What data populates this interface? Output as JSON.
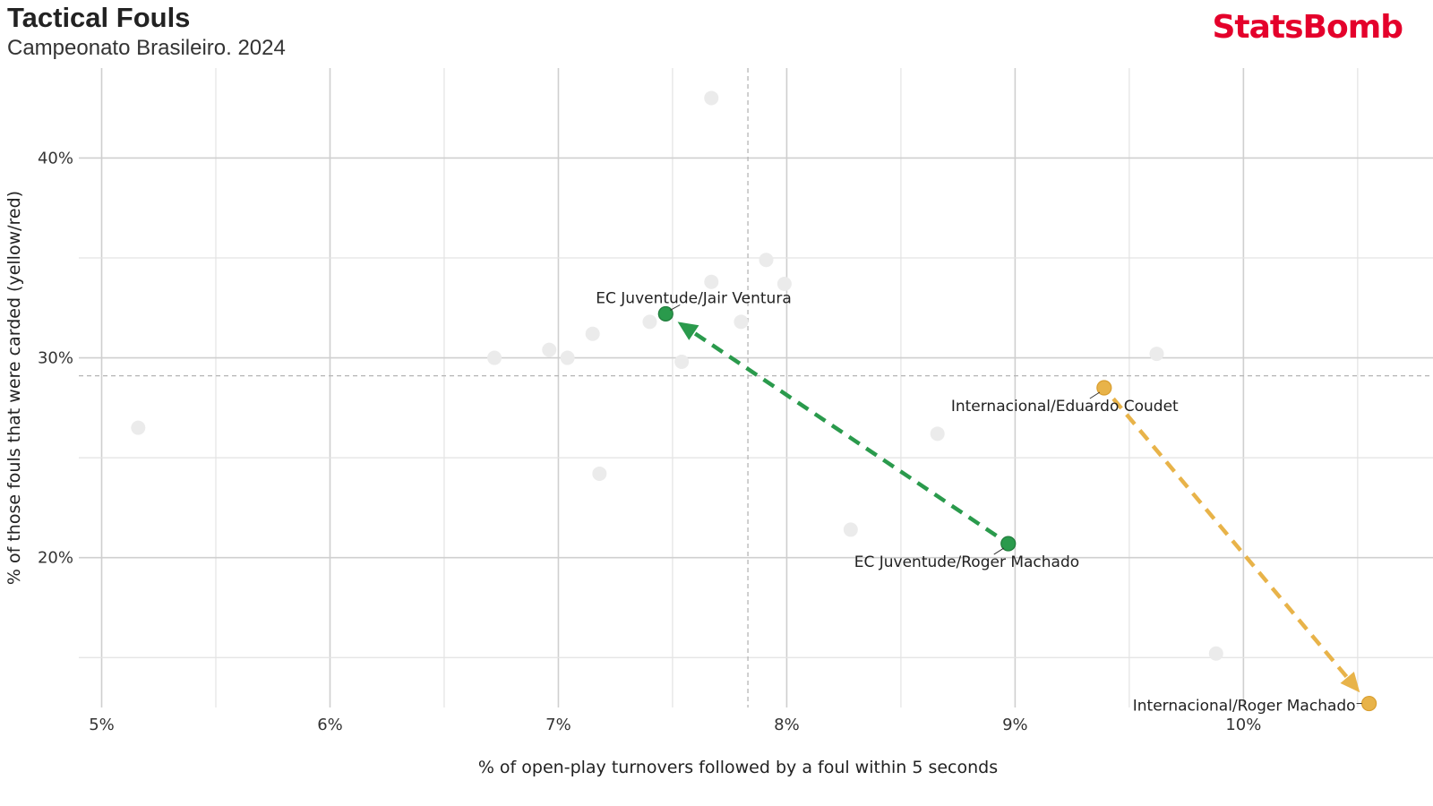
{
  "header": {
    "title": "Tactical Fouls",
    "subtitle": "Campeonato Brasileiro. 2024",
    "brand": "StatsBomb",
    "brand_color": "#e4002b"
  },
  "chart_data": {
    "type": "scatter",
    "xlabel": "% of open-play turnovers followed by a foul within 5 seconds",
    "ylabel": "% of those fouls that were carded (yellow/red)",
    "xlim": [
      4.9,
      10.83
    ],
    "ylim": [
      12.5,
      44.5
    ],
    "x_ticks": [
      5,
      6,
      7,
      8,
      9,
      10
    ],
    "x_tick_labels": [
      "5%",
      "6%",
      "7%",
      "8%",
      "9%",
      "10%"
    ],
    "y_ticks": [
      20,
      30,
      40
    ],
    "y_tick_labels": [
      "20%",
      "30%",
      "40%"
    ],
    "grid": true,
    "reference_lines": {
      "x": 7.83,
      "y": 29.1
    },
    "colors": {
      "background_points": "#ebebeb",
      "green": "#2a9a4c",
      "orange": "#e8b349"
    },
    "background_points": [
      {
        "x": 5.16,
        "y": 26.5
      },
      {
        "x": 6.72,
        "y": 30.0
      },
      {
        "x": 6.96,
        "y": 30.4
      },
      {
        "x": 7.04,
        "y": 30.0
      },
      {
        "x": 7.15,
        "y": 31.2
      },
      {
        "x": 7.18,
        "y": 24.2
      },
      {
        "x": 7.4,
        "y": 31.8
      },
      {
        "x": 7.54,
        "y": 29.8
      },
      {
        "x": 7.67,
        "y": 43.0
      },
      {
        "x": 7.67,
        "y": 33.8
      },
      {
        "x": 7.8,
        "y": 31.8
      },
      {
        "x": 7.91,
        "y": 34.9
      },
      {
        "x": 7.99,
        "y": 33.7
      },
      {
        "x": 8.28,
        "y": 21.4
      },
      {
        "x": 8.66,
        "y": 26.2
      },
      {
        "x": 9.62,
        "y": 30.2
      },
      {
        "x": 9.88,
        "y": 15.2
      }
    ],
    "highlighted": [
      {
        "label": "EC Juventude/Roger Machado",
        "x": 8.97,
        "y": 20.7,
        "color": "green"
      },
      {
        "label": "EC Juventude/Jair Ventura",
        "x": 7.47,
        "y": 32.2,
        "color": "green"
      },
      {
        "label": "Internacional/Eduardo Coudet",
        "x": 9.39,
        "y": 28.5,
        "color": "orange"
      },
      {
        "label": "Internacional/Roger Machado",
        "x": 10.55,
        "y": 12.7,
        "color": "orange"
      }
    ],
    "arrows": [
      {
        "from": "EC Juventude/Roger Machado",
        "to": "EC Juventude/Jair Ventura",
        "color": "green"
      },
      {
        "from": "Internacional/Eduardo Coudet",
        "to": "Internacional/Roger Machado",
        "color": "orange"
      }
    ]
  }
}
